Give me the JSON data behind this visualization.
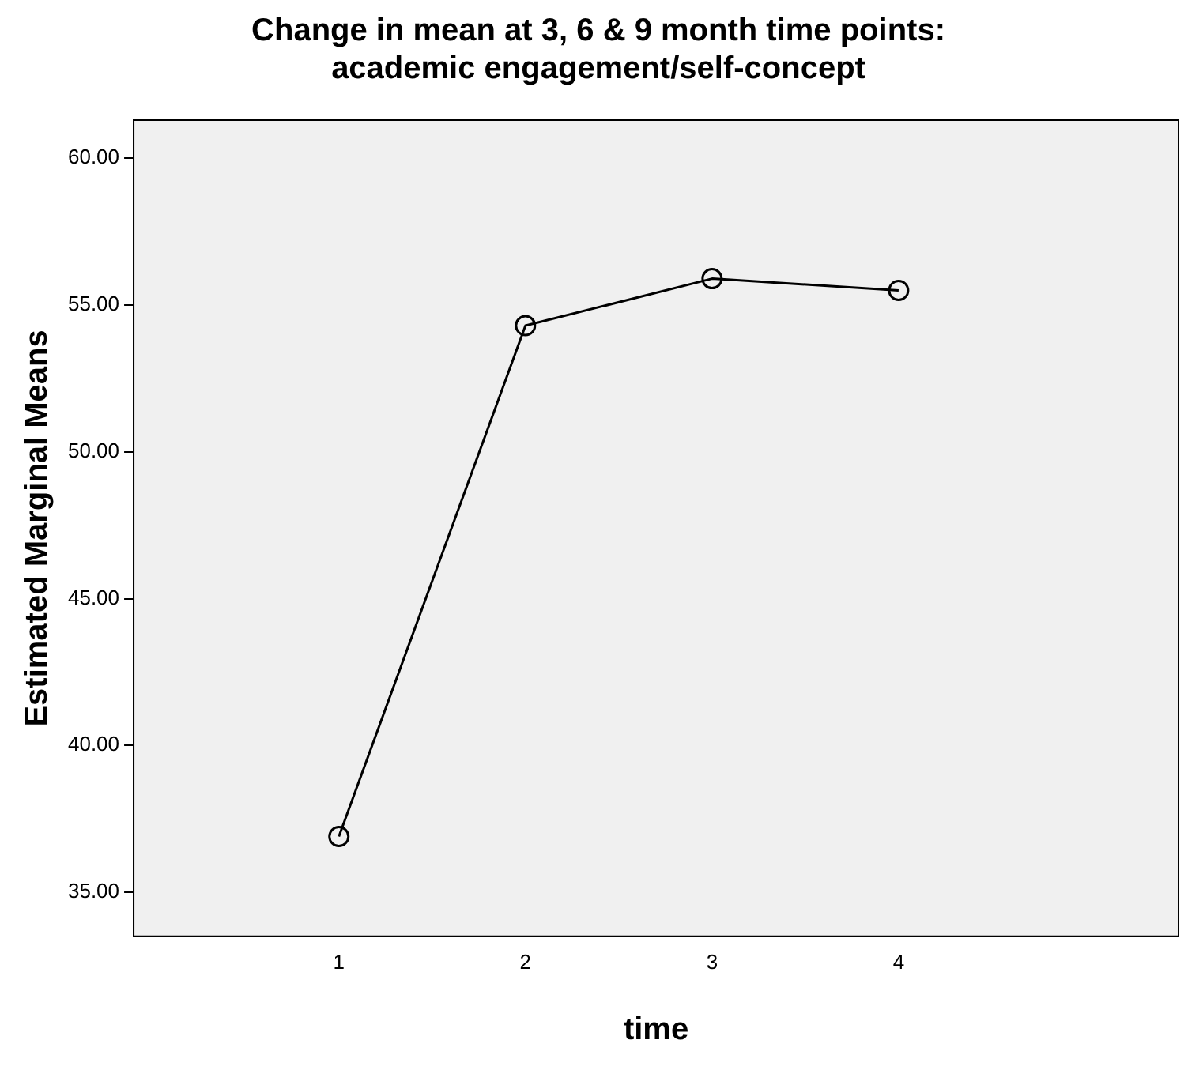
{
  "chart_data": {
    "type": "line",
    "title": "Change in mean at 3, 6 & 9 month time points:\nacademic engagement/self-concept",
    "xlabel": "time",
    "ylabel": "Estimated Marginal Means",
    "x": [
      1,
      2,
      3,
      4
    ],
    "series": [
      {
        "color": "#000000",
        "values": [
          36.9,
          54.3,
          55.9,
          55.5
        ]
      }
    ],
    "xlim": [
      -0.1,
      5.5
    ],
    "xticks": [
      1,
      2,
      3,
      4
    ],
    "ylim": [
      33.5,
      61.3
    ],
    "yticks": [
      {
        "value": 35,
        "label": "35.00"
      },
      {
        "value": 40,
        "label": "40.00"
      },
      {
        "value": 45,
        "label": "45.00"
      },
      {
        "value": 50,
        "label": "50.00"
      },
      {
        "value": 55,
        "label": "55.00"
      },
      {
        "value": 60,
        "label": "60.00"
      }
    ],
    "grid": false,
    "legend": false,
    "marker": "circle",
    "line_style": "solid"
  }
}
